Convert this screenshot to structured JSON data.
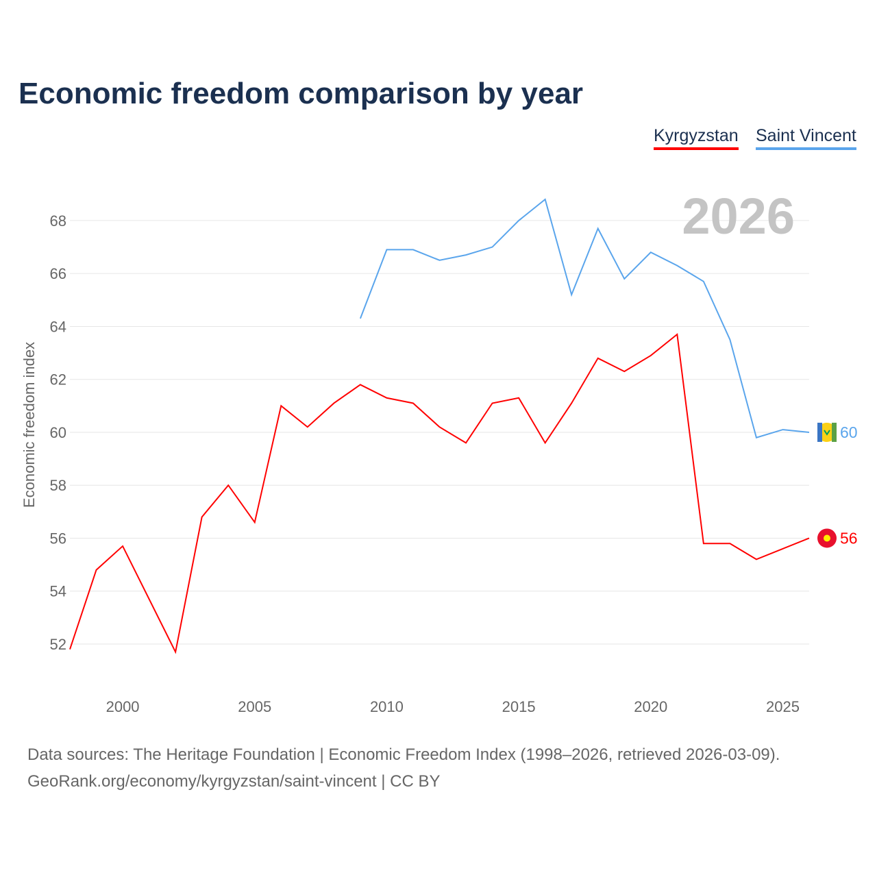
{
  "title": "Economic freedom comparison by year",
  "footer": {
    "line1": "Data sources: The Heritage Foundation | Economic Freedom Index (1998–2026, retrieved 2026-03-09).",
    "line2": "GeoRank.org/economy/kyrgyzstan/saint-vincent | CC BY"
  },
  "chart_data": {
    "type": "line",
    "title": "Economic freedom comparison by year",
    "xlabel": "",
    "ylabel": "Economic freedom index",
    "year_label": "2026",
    "xlim": [
      1998,
      2026
    ],
    "ylim": [
      51,
      69.5
    ],
    "xticks": [
      "2000",
      "2005",
      "2010",
      "2015",
      "2020",
      "2025"
    ],
    "yticks": [
      "52",
      "54",
      "56",
      "58",
      "60",
      "62",
      "64",
      "66",
      "68"
    ],
    "grid": true,
    "legend_position": "top-right",
    "series": [
      {
        "name": "Kyrgyzstan",
        "color": "#ff0000",
        "end_label": "56",
        "x": [
          1998,
          1999,
          2000,
          2001,
          2002,
          2003,
          2004,
          2005,
          2006,
          2007,
          2008,
          2009,
          2010,
          2011,
          2012,
          2013,
          2014,
          2015,
          2016,
          2017,
          2018,
          2019,
          2020,
          2021,
          2022,
          2023,
          2024,
          2025,
          2026
        ],
        "values": [
          51.8,
          54.8,
          55.7,
          53.7,
          51.7,
          56.8,
          58.0,
          56.6,
          61.0,
          60.2,
          61.1,
          61.8,
          61.3,
          61.1,
          60.2,
          59.6,
          61.1,
          61.3,
          59.6,
          61.1,
          62.8,
          62.3,
          62.9,
          63.7,
          55.8,
          55.8,
          55.2,
          55.6,
          56.0
        ]
      },
      {
        "name": "Saint Vincent",
        "color": "#5aa5ec",
        "end_label": "60",
        "x": [
          2009,
          2010,
          2011,
          2012,
          2013,
          2014,
          2015,
          2016,
          2017,
          2018,
          2019,
          2020,
          2021,
          2022,
          2023,
          2024,
          2025,
          2026
        ],
        "values": [
          64.3,
          66.9,
          66.9,
          66.5,
          66.7,
          67.0,
          68.0,
          68.8,
          65.2,
          67.7,
          65.8,
          66.8,
          66.3,
          65.7,
          63.5,
          59.8,
          60.1,
          60.0
        ]
      }
    ]
  }
}
